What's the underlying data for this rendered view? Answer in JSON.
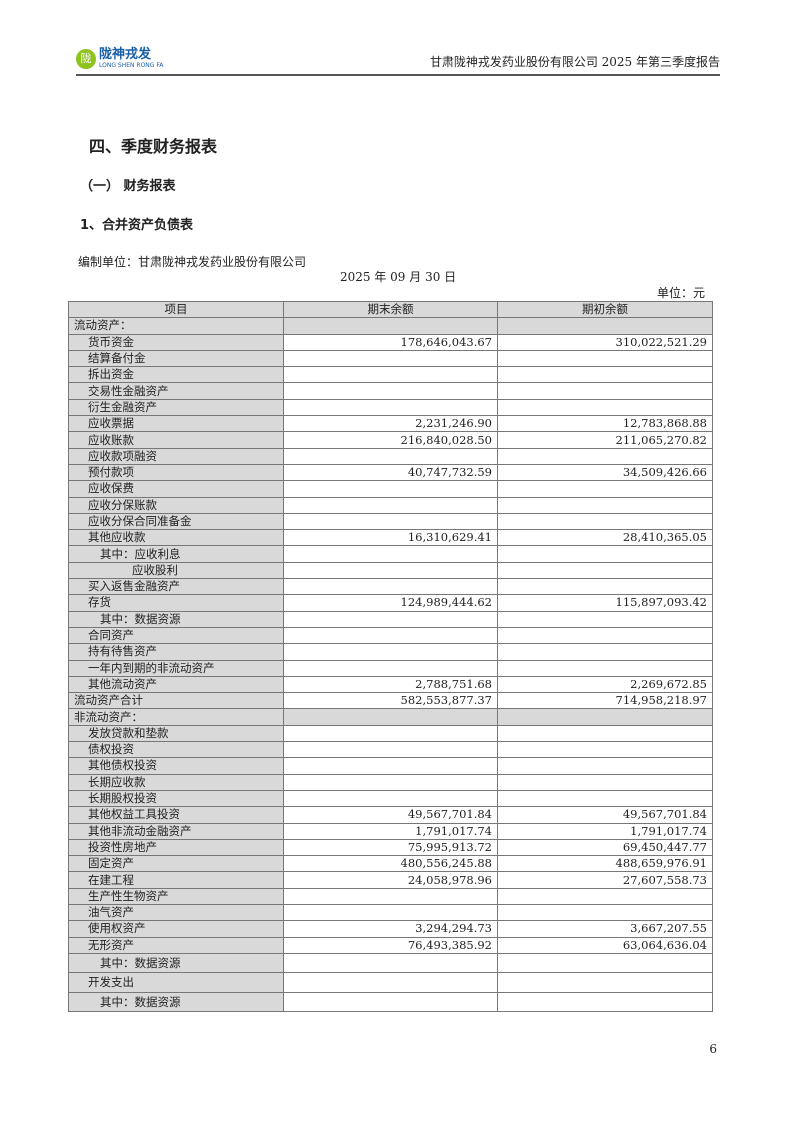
{
  "header": {
    "logo_cn": "陇神戎发",
    "logo_en": "LONG SHEN RONG FA",
    "report_title": "甘肃陇神戎发药业股份有限公司 2025 年第三季度报告"
  },
  "section_title": "四、季度财务报表",
  "subsection_title": "（一） 财务报表",
  "statement_title": "1、合并资产负债表",
  "prepared_by": "编制单位：甘肃陇神戎发药业股份有限公司",
  "date": "2025 年 09 月 30 日",
  "unit": "单位：元",
  "table": {
    "columns": [
      "项目",
      "期末余额",
      "期初余额"
    ],
    "rows": [
      {
        "label": "流动资产：",
        "end": "",
        "begin": "",
        "level": 0,
        "section": true
      },
      {
        "label": "货币资金",
        "end": "178,646,043.67",
        "begin": "310,022,521.29",
        "level": 1
      },
      {
        "label": "结算备付金",
        "end": "",
        "begin": "",
        "level": 1
      },
      {
        "label": "拆出资金",
        "end": "",
        "begin": "",
        "level": 1
      },
      {
        "label": "交易性金融资产",
        "end": "",
        "begin": "",
        "level": 1
      },
      {
        "label": "衍生金融资产",
        "end": "",
        "begin": "",
        "level": 1
      },
      {
        "label": "应收票据",
        "end": "2,231,246.90",
        "begin": "12,783,868.88",
        "level": 1
      },
      {
        "label": "应收账款",
        "end": "216,840,028.50",
        "begin": "211,065,270.82",
        "level": 1
      },
      {
        "label": "应收款项融资",
        "end": "",
        "begin": "",
        "level": 1
      },
      {
        "label": "预付款项",
        "end": "40,747,732.59",
        "begin": "34,509,426.66",
        "level": 1
      },
      {
        "label": "应收保费",
        "end": "",
        "begin": "",
        "level": 1
      },
      {
        "label": "应收分保账款",
        "end": "",
        "begin": "",
        "level": 1
      },
      {
        "label": "应收分保合同准备金",
        "end": "",
        "begin": "",
        "level": 1
      },
      {
        "label": "其他应收款",
        "end": "16,310,629.41",
        "begin": "28,410,365.05",
        "level": 1
      },
      {
        "label": "其中：应收利息",
        "end": "",
        "begin": "",
        "level": 2
      },
      {
        "label": "应收股利",
        "end": "",
        "begin": "",
        "level": 3
      },
      {
        "label": "买入返售金融资产",
        "end": "",
        "begin": "",
        "level": 1
      },
      {
        "label": "存货",
        "end": "124,989,444.62",
        "begin": "115,897,093.42",
        "level": 1
      },
      {
        "label": "其中：数据资源",
        "end": "",
        "begin": "",
        "level": 2
      },
      {
        "label": "合同资产",
        "end": "",
        "begin": "",
        "level": 1
      },
      {
        "label": "持有待售资产",
        "end": "",
        "begin": "",
        "level": 1
      },
      {
        "label": "一年内到期的非流动资产",
        "end": "",
        "begin": "",
        "level": 1
      },
      {
        "label": "其他流动资产",
        "end": "2,788,751.68",
        "begin": "2,269,672.85",
        "level": 1
      },
      {
        "label": "流动资产合计",
        "end": "582,553,877.37",
        "begin": "714,958,218.97",
        "level": 0
      },
      {
        "label": "非流动资产：",
        "end": "",
        "begin": "",
        "level": 0,
        "section": true
      },
      {
        "label": "发放贷款和垫款",
        "end": "",
        "begin": "",
        "level": 1
      },
      {
        "label": "债权投资",
        "end": "",
        "begin": "",
        "level": 1
      },
      {
        "label": "其他债权投资",
        "end": "",
        "begin": "",
        "level": 1
      },
      {
        "label": "长期应收款",
        "end": "",
        "begin": "",
        "level": 1
      },
      {
        "label": "长期股权投资",
        "end": "",
        "begin": "",
        "level": 1
      },
      {
        "label": "其他权益工具投资",
        "end": "49,567,701.84",
        "begin": "49,567,701.84",
        "level": 1
      },
      {
        "label": "其他非流动金融资产",
        "end": "1,791,017.74",
        "begin": "1,791,017.74",
        "level": 1
      },
      {
        "label": "投资性房地产",
        "end": "75,995,913.72",
        "begin": "69,450,447.77",
        "level": 1
      },
      {
        "label": "固定资产",
        "end": "480,556,245.88",
        "begin": "488,659,976.91",
        "level": 1
      },
      {
        "label": "在建工程",
        "end": "24,058,978.96",
        "begin": "27,607,558.73",
        "level": 1
      },
      {
        "label": "生产性生物资产",
        "end": "",
        "begin": "",
        "level": 1
      },
      {
        "label": "油气资产",
        "end": "",
        "begin": "",
        "level": 1
      },
      {
        "label": "使用权资产",
        "end": "3,294,294.73",
        "begin": "3,667,207.55",
        "level": 1
      },
      {
        "label": "无形资产",
        "end": "76,493,385.92",
        "begin": "63,064,636.04",
        "level": 1
      },
      {
        "label": "其中：数据资源",
        "end": "",
        "begin": "",
        "level": 2,
        "tall": true
      },
      {
        "label": "开发支出",
        "end": "",
        "begin": "",
        "level": 1,
        "tall": true
      },
      {
        "label": "其中：数据资源",
        "end": "",
        "begin": "",
        "level": 2,
        "tall": true
      }
    ]
  },
  "page_number": "6"
}
